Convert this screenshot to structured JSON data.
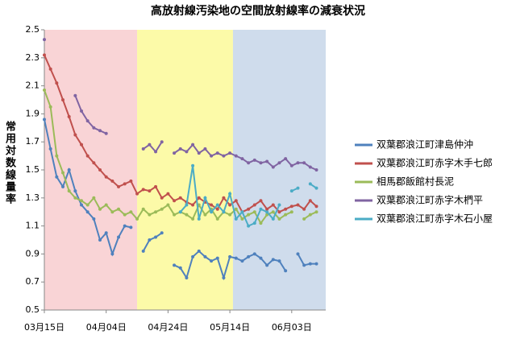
{
  "chart_data": {
    "type": "line",
    "title": "高放射線汚染地の空間放射線率の減衰状況",
    "y_label": "常用対数線量率",
    "xlim": [
      0,
      91
    ],
    "xticks": [
      {
        "value": 0,
        "label": "03月15日"
      },
      {
        "value": 20,
        "label": "04月04日"
      },
      {
        "value": 40,
        "label": "04月24日"
      },
      {
        "value": 60,
        "label": "05月14日"
      },
      {
        "value": 80,
        "label": "06月03日"
      }
    ],
    "ylim": [
      0.5,
      2.5
    ],
    "yticks": [
      0.5,
      0.7,
      0.9,
      1.1,
      1.3,
      1.5,
      1.7,
      1.9,
      2.1,
      2.3,
      2.5
    ],
    "bands": [
      {
        "from": 0,
        "to": 30,
        "color": "#f9d4d6"
      },
      {
        "from": 30,
        "to": 61,
        "color": "#fcfaa8"
      },
      {
        "from": 61,
        "to": 91,
        "color": "#cfdcec"
      }
    ],
    "x": [
      0,
      2,
      4,
      6,
      8,
      10,
      12,
      14,
      16,
      18,
      20,
      22,
      24,
      26,
      28,
      30,
      32,
      34,
      36,
      38,
      40,
      42,
      44,
      46,
      48,
      50,
      52,
      54,
      56,
      58,
      60,
      62,
      64,
      66,
      68,
      70,
      72,
      74,
      76,
      78,
      80,
      82,
      84,
      86,
      88
    ],
    "series": [
      {
        "name": "双葉郡浪江町津島仲沖",
        "color": "#4f81bd",
        "values": [
          1.86,
          1.65,
          1.45,
          1.38,
          1.5,
          1.35,
          1.25,
          1.2,
          1.15,
          1.0,
          1.05,
          0.9,
          1.02,
          1.1,
          1.09,
          null,
          0.92,
          1.0,
          1.02,
          1.05,
          null,
          0.82,
          0.8,
          0.73,
          0.88,
          0.92,
          0.88,
          0.85,
          0.87,
          0.73,
          0.88,
          0.87,
          0.85,
          0.88,
          0.9,
          0.87,
          0.82,
          0.86,
          0.85,
          0.78,
          null,
          0.9,
          0.82,
          0.83,
          0.83
        ]
      },
      {
        "name": "双葉郡浪江町赤字木手七郎",
        "color": "#c0504d",
        "values": [
          2.32,
          2.22,
          2.12,
          2.0,
          1.88,
          1.75,
          1.68,
          1.6,
          1.55,
          1.5,
          1.45,
          1.42,
          1.38,
          1.4,
          1.42,
          1.33,
          1.36,
          1.35,
          1.38,
          1.3,
          1.33,
          1.28,
          1.3,
          1.27,
          1.25,
          1.3,
          1.27,
          1.25,
          1.22,
          1.3,
          1.25,
          1.28,
          1.2,
          1.22,
          1.25,
          1.28,
          1.22,
          1.25,
          1.2,
          1.22,
          1.24,
          1.25,
          1.22,
          1.28,
          1.24
        ]
      },
      {
        "name": "相馬郡飯館村長泥",
        "color": "#9bbb59",
        "values": [
          2.07,
          1.95,
          1.6,
          1.48,
          1.35,
          1.3,
          1.28,
          1.25,
          1.3,
          1.22,
          1.25,
          1.2,
          1.22,
          1.18,
          1.2,
          1.15,
          1.22,
          1.18,
          1.2,
          1.22,
          1.25,
          1.18,
          1.2,
          1.18,
          1.15,
          1.25,
          1.18,
          1.22,
          1.15,
          1.2,
          1.18,
          1.22,
          1.15,
          1.18,
          1.2,
          1.12,
          1.18,
          1.2,
          1.15,
          1.18,
          1.2,
          null,
          1.15,
          1.18,
          1.2
        ]
      },
      {
        "name": "双葉郡浪江町赤字木椚平",
        "color": "#8064a2",
        "values": [
          2.43,
          null,
          null,
          null,
          null,
          2.03,
          1.92,
          1.85,
          1.8,
          1.78,
          1.76,
          null,
          null,
          null,
          null,
          null,
          1.65,
          1.68,
          1.63,
          1.7,
          null,
          1.62,
          1.65,
          1.63,
          1.68,
          1.62,
          1.65,
          1.6,
          1.62,
          1.6,
          1.62,
          1.6,
          1.58,
          1.55,
          1.57,
          1.55,
          1.56,
          1.52,
          1.55,
          1.58,
          1.53,
          1.55,
          1.55,
          1.52,
          1.5
        ]
      },
      {
        "name": "双葉郡浪江町赤字木石小屋",
        "color": "#4bacc6",
        "values": [
          null,
          null,
          null,
          null,
          null,
          null,
          null,
          null,
          null,
          null,
          null,
          null,
          null,
          null,
          null,
          null,
          null,
          null,
          null,
          null,
          null,
          null,
          1.2,
          1.25,
          1.53,
          1.15,
          1.3,
          1.2,
          1.25,
          1.2,
          1.33,
          1.15,
          1.2,
          1.1,
          1.12,
          1.22,
          1.2,
          1.15,
          1.25,
          null,
          1.35,
          1.37,
          null,
          1.4,
          1.37
        ]
      }
    ]
  }
}
